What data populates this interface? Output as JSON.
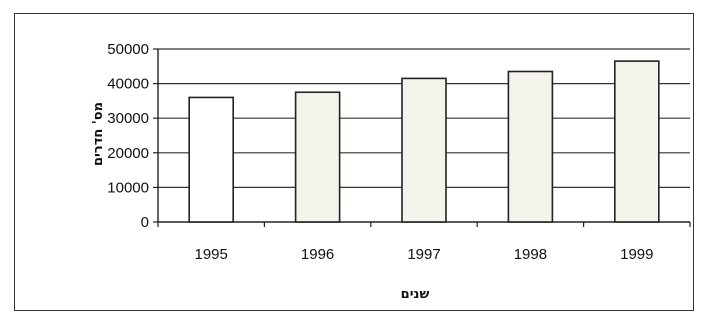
{
  "chart_data": {
    "type": "bar",
    "categories": [
      "1995",
      "1996",
      "1997",
      "1998",
      "1999"
    ],
    "values": [
      36000,
      37500,
      41500,
      43500,
      46500
    ],
    "title": "",
    "xlabel": "שנים",
    "ylabel": "מס' חדרים",
    "ylim": [
      0,
      50000
    ],
    "yticks": [
      0,
      10000,
      20000,
      30000,
      40000,
      50000
    ],
    "ytick_labels": [
      "0",
      "10000",
      "20000",
      "30000",
      "40000",
      "50000"
    ],
    "grid": true,
    "legend": "none",
    "colors": {
      "bar_fill": "#f4f4ec",
      "bar_fill_first": "#ffffff",
      "bar_stroke": "#222222",
      "grid": "#333333"
    }
  }
}
